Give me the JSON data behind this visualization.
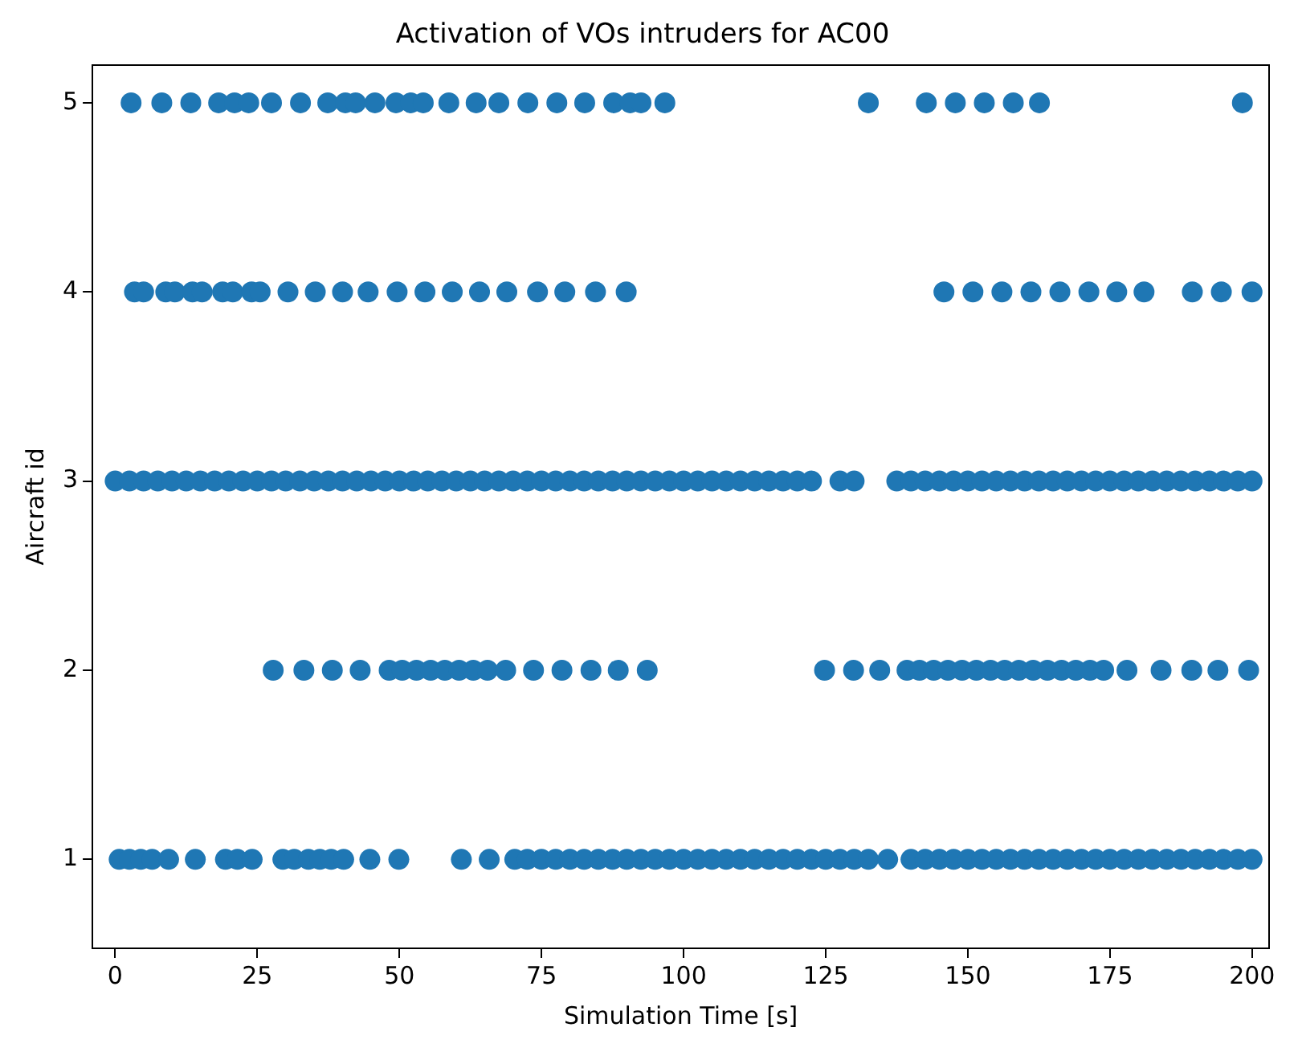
{
  "chart_data": {
    "type": "scatter",
    "title": "Activation of VOs intruders for AC00",
    "xlabel": "Simulation Time [s]",
    "ylabel": "Aircraft id",
    "xlim": [
      -4,
      203
    ],
    "ylim": [
      0.53,
      5.2
    ],
    "xticks": [
      0,
      25,
      50,
      75,
      100,
      125,
      150,
      175,
      200
    ],
    "yticks": [
      1,
      2,
      3,
      4,
      5
    ],
    "grid": false,
    "legend": false,
    "marker": "circle",
    "series": [
      {
        "color": "#1f77b4",
        "x": [
          0.7,
          2.5,
          4.5,
          6.5,
          9.4,
          14.1,
          19.4,
          21.5,
          24.1,
          29.5,
          31.5,
          34,
          36,
          38,
          40.2,
          44.8,
          49.9,
          60.9,
          65.8,
          70.3,
          72.5,
          75,
          77.5,
          80,
          82.5,
          85,
          87.5,
          90,
          92.5,
          95,
          97.5,
          100,
          102.5,
          105,
          107.5,
          110,
          112.5,
          115,
          117.5,
          120,
          122.5,
          125,
          127.5,
          130,
          132.5,
          135.9,
          140,
          142.5,
          145,
          147.5,
          150,
          152.5,
          155,
          157.5,
          160,
          162.5,
          165,
          167.5,
          170,
          172.5,
          175,
          177.5,
          180,
          182.5,
          185,
          187.5,
          190,
          192.5,
          195,
          197.5,
          200
        ],
        "values": [
          1,
          1,
          1,
          1,
          1,
          1,
          1,
          1,
          1,
          1,
          1,
          1,
          1,
          1,
          1,
          1,
          1,
          1,
          1,
          1,
          1,
          1,
          1,
          1,
          1,
          1,
          1,
          1,
          1,
          1,
          1,
          1,
          1,
          1,
          1,
          1,
          1,
          1,
          1,
          1,
          1,
          1,
          1,
          1,
          1,
          1,
          1,
          1,
          1,
          1,
          1,
          1,
          1,
          1,
          1,
          1,
          1,
          1,
          1,
          1,
          1,
          1,
          1,
          1,
          1,
          1,
          1,
          1,
          1,
          1,
          1
        ]
      },
      {
        "color": "#1f77b4",
        "x": [
          27.8,
          33.2,
          38.2,
          43.1,
          48.2,
          50.5,
          53,
          55.5,
          58,
          60.5,
          63,
          65.5,
          68.7,
          73.6,
          78.6,
          83.7,
          88.5,
          93.6,
          124.8,
          129.9,
          134.5,
          139.3,
          141.5,
          144,
          146.5,
          149,
          151.5,
          154,
          156.5,
          159,
          161.5,
          164,
          166.5,
          169,
          171.5,
          173.9,
          178,
          184,
          189.4,
          194,
          199.4
        ],
        "values": [
          2,
          2,
          2,
          2,
          2,
          2,
          2,
          2,
          2,
          2,
          2,
          2,
          2,
          2,
          2,
          2,
          2,
          2,
          2,
          2,
          2,
          2,
          2,
          2,
          2,
          2,
          2,
          2,
          2,
          2,
          2,
          2,
          2,
          2,
          2,
          2,
          2,
          2,
          2,
          2,
          2
        ]
      },
      {
        "color": "#1f77b4",
        "x": [
          0,
          2.5,
          5,
          7.5,
          10,
          12.5,
          15,
          17.5,
          20,
          22.5,
          25,
          27.5,
          30,
          32.5,
          35,
          37.5,
          40,
          42.5,
          45,
          47.5,
          50,
          52.5,
          55,
          57.5,
          60,
          62.5,
          65,
          67.5,
          70,
          72.5,
          75,
          77.5,
          80,
          82.5,
          85,
          87.5,
          90,
          92.5,
          95,
          97.5,
          100,
          102.5,
          105,
          107.5,
          110,
          112.5,
          115,
          117.5,
          120,
          122.5,
          127.5,
          130,
          137.5,
          140,
          142.5,
          145,
          147.5,
          150,
          152.5,
          155,
          157.5,
          160,
          162.5,
          165,
          167.5,
          170,
          172.5,
          175,
          177.5,
          180,
          182.5,
          185,
          187.5,
          190,
          192.5,
          195,
          197.5,
          200
        ],
        "values": [
          3,
          3,
          3,
          3,
          3,
          3,
          3,
          3,
          3,
          3,
          3,
          3,
          3,
          3,
          3,
          3,
          3,
          3,
          3,
          3,
          3,
          3,
          3,
          3,
          3,
          3,
          3,
          3,
          3,
          3,
          3,
          3,
          3,
          3,
          3,
          3,
          3,
          3,
          3,
          3,
          3,
          3,
          3,
          3,
          3,
          3,
          3,
          3,
          3,
          3,
          3,
          3,
          3,
          3,
          3,
          3,
          3,
          3,
          3,
          3,
          3,
          3,
          3,
          3,
          3,
          3,
          3,
          3,
          3,
          3,
          3,
          3,
          3,
          3,
          3,
          3,
          3,
          3
        ]
      },
      {
        "color": "#1f77b4",
        "x": [
          3.4,
          5,
          8.9,
          10.5,
          13.6,
          15.3,
          18.9,
          20.7,
          24,
          25.5,
          30.4,
          35.2,
          40,
          44.5,
          49.6,
          54.5,
          59.3,
          64.1,
          68.9,
          74.3,
          79.1,
          84.5,
          89.9,
          145.8,
          150.9,
          156,
          161.1,
          166.2,
          171.3,
          176.2,
          181,
          189.5,
          194.6,
          200
        ],
        "values": [
          4,
          4,
          4,
          4,
          4,
          4,
          4,
          4,
          4,
          4,
          4,
          4,
          4,
          4,
          4,
          4,
          4,
          4,
          4,
          4,
          4,
          4,
          4,
          4,
          4,
          4,
          4,
          4,
          4,
          4,
          4,
          4,
          4,
          4
        ]
      },
      {
        "color": "#1f77b4",
        "x": [
          2.8,
          8.2,
          13.3,
          18.2,
          21,
          23.5,
          27.5,
          32.6,
          37.4,
          40.5,
          42.3,
          45.7,
          49.4,
          52,
          54.2,
          58.7,
          63.5,
          67.5,
          72.6,
          77.7,
          82.6,
          87.7,
          90.6,
          92.5,
          96.7,
          132.5,
          142.7,
          147.8,
          152.9,
          158,
          162.6,
          198.3
        ],
        "values": [
          5,
          5,
          5,
          5,
          5,
          5,
          5,
          5,
          5,
          5,
          5,
          5,
          5,
          5,
          5,
          5,
          5,
          5,
          5,
          5,
          5,
          5,
          5,
          5,
          5,
          5,
          5,
          5,
          5,
          5,
          5,
          5
        ]
      }
    ]
  }
}
